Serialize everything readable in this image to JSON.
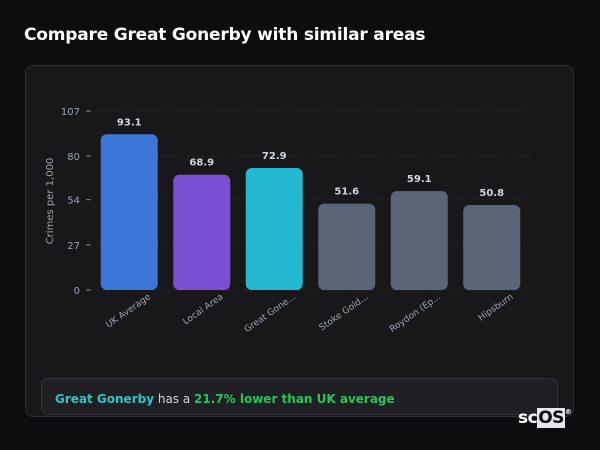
{
  "header": {
    "title": "Compare Great Gonerby with similar areas"
  },
  "chart_data": {
    "type": "bar",
    "title": "",
    "xlabel": "",
    "ylabel": "Crimes per 1,000",
    "ylim": [
      0,
      107
    ],
    "yticks": [
      0,
      27,
      54,
      80,
      107
    ],
    "grid": true,
    "categories": [
      "UK Average",
      "Local Area",
      "Great Gone...",
      "Stoke Gold...",
      "Roydon (Ep...",
      "Hipsburn"
    ],
    "values": [
      93.1,
      68.9,
      72.9,
      51.6,
      59.1,
      50.8
    ],
    "value_labels": [
      "93.1",
      "68.9",
      "72.9",
      "51.6",
      "59.1",
      "50.8"
    ],
    "colors": [
      "#3b76d9",
      "#7b4fd4",
      "#22b8cf",
      "#5b6578",
      "#5b6578",
      "#5b6578"
    ]
  },
  "summary": {
    "name": "Great Gonerby",
    "middle": " has a ",
    "highlight": "21.7% lower than UK average"
  },
  "logo": {
    "text_a": "sc",
    "text_b": "OS",
    "mark": "®"
  }
}
